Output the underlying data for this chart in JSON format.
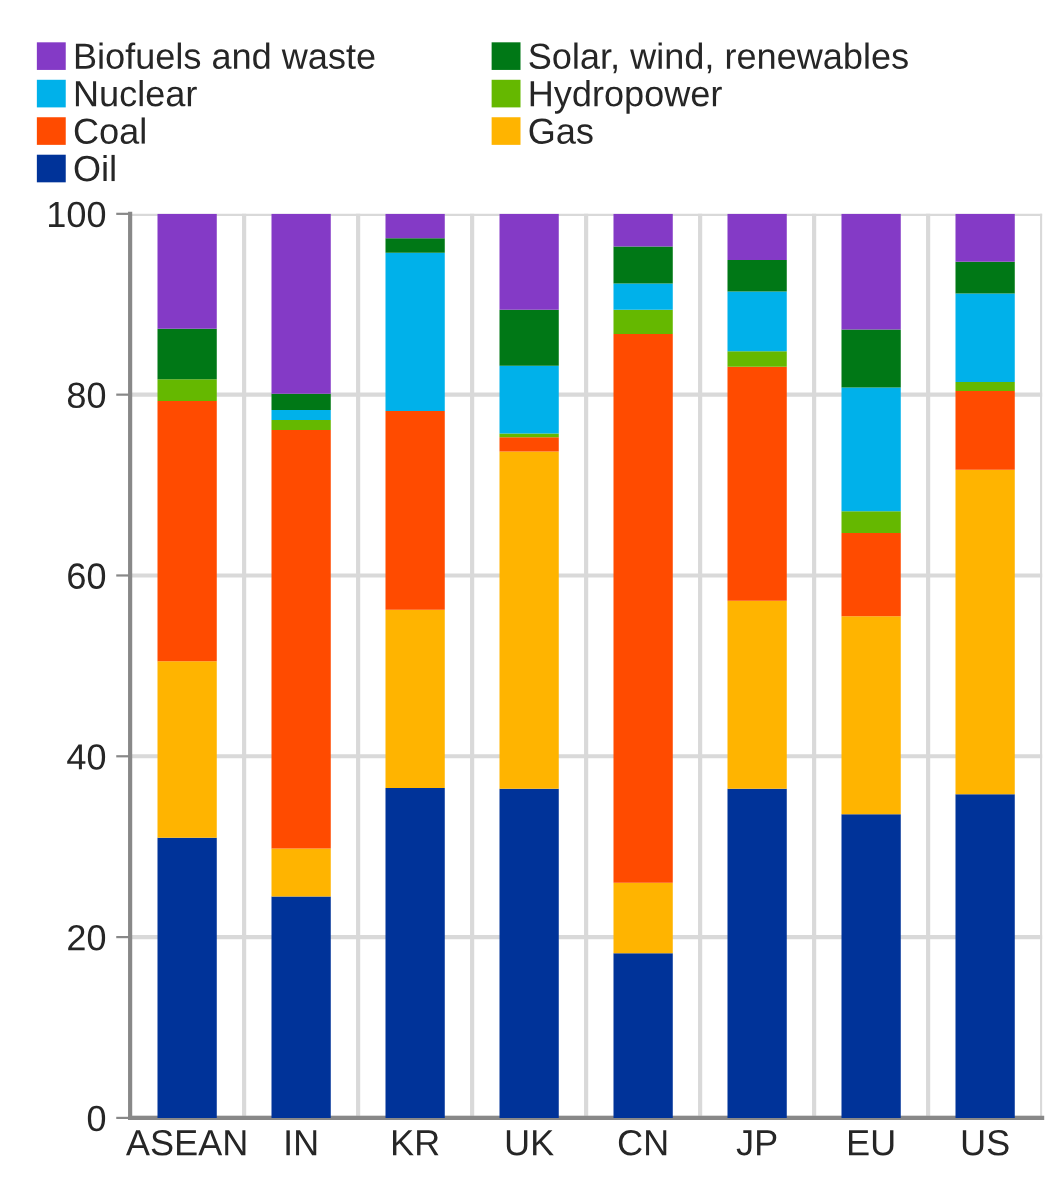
{
  "chart_data": {
    "type": "bar",
    "stacked": true,
    "categories": [
      "ASEAN",
      "IN",
      "KR",
      "UK",
      "CN",
      "JP",
      "EU",
      "US"
    ],
    "series": [
      {
        "name": "Oil",
        "color": "#003399",
        "values": [
          31,
          24.5,
          36.5,
          36.4,
          18.2,
          36.4,
          33.6,
          35.8
        ]
      },
      {
        "name": "Gas",
        "color": "#ffb400",
        "values": [
          19.5,
          5.3,
          19.7,
          37.3,
          7.8,
          20.8,
          21.9,
          35.9
        ]
      },
      {
        "name": "Coal",
        "color": "#ff4b00",
        "values": [
          28.8,
          46.3,
          22.0,
          1.6,
          60.7,
          25.9,
          9.2,
          8.7
        ]
      },
      {
        "name": "Hydropower",
        "color": "#65b800",
        "values": [
          2.4,
          1.1,
          0,
          0.4,
          2.7,
          1.7,
          2.4,
          1.0
        ]
      },
      {
        "name": "Nuclear",
        "color": "#00b1ea",
        "values": [
          0,
          1.1,
          17.5,
          7.5,
          2.9,
          6.6,
          13.7,
          9.8
        ]
      },
      {
        "name": "Solar, wind, renewables",
        "color": "#007816",
        "values": [
          5.6,
          1.8,
          1.6,
          6.2,
          4.1,
          3.5,
          6.4,
          3.5
        ]
      },
      {
        "name": "Biofuels and waste",
        "color": "#843ac6",
        "values": [
          12.7,
          19.9,
          2.7,
          10.6,
          3.6,
          5.1,
          12.8,
          5.3
        ]
      }
    ],
    "ylim": [
      0,
      100
    ],
    "yticks": [
      0,
      20,
      40,
      60,
      80,
      100
    ],
    "grid": true,
    "legend": "top"
  }
}
